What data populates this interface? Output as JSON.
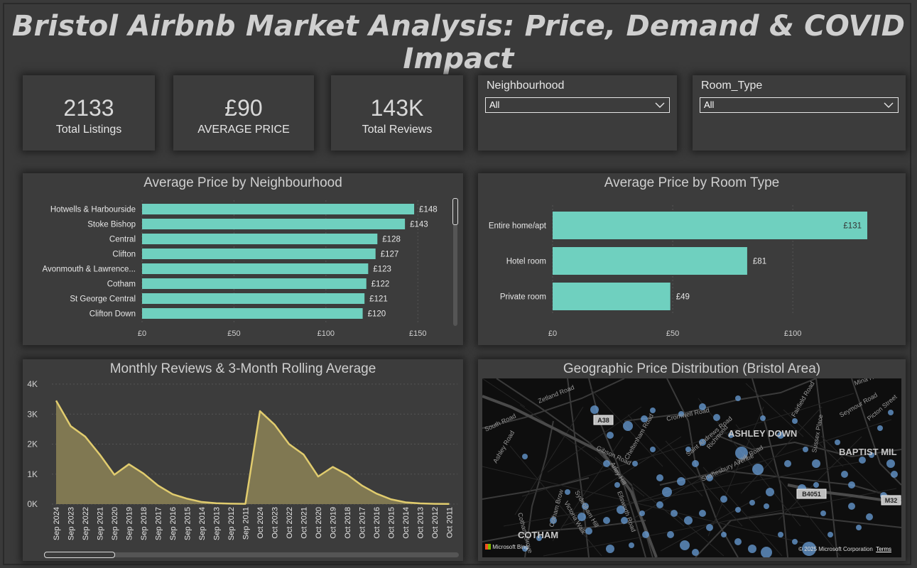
{
  "title": "Bristol Airbnb Market Analysis: Price, Demand & COVID Impact",
  "kpis": [
    {
      "value": "2133",
      "label": "Total Listings"
    },
    {
      "value": "£90",
      "label": "AVERAGE PRICE"
    },
    {
      "value": "143K",
      "label": "Total Reviews"
    }
  ],
  "slicers": {
    "neighbourhood": {
      "title": "Neighbourhood",
      "value": "All"
    },
    "room_type": {
      "title": "Room_Type",
      "value": "All"
    }
  },
  "colors": {
    "bar": "#6fd0bf",
    "area_fill": "#807852",
    "area_line": "#e1cc6e",
    "map_point": "#6a9fd8",
    "background": "#3a3a3a"
  },
  "charts": {
    "neighbourhood": {
      "title": "Average Price by Neighbourhood"
    },
    "room_type": {
      "title": "Average Price by Room Type"
    },
    "reviews": {
      "title": "Monthly Reviews & 3-Month Rolling Average"
    },
    "map": {
      "title": "Geographic Price Distribution (Bristol Area)"
    }
  },
  "chart_data": [
    {
      "type": "bar",
      "orientation": "horizontal",
      "title": "Average Price by Neighbourhood",
      "categories": [
        "Hotwells & Harbourside",
        "Stoke Bishop",
        "Central",
        "Clifton",
        "Avonmouth & Lawrence...",
        "Cotham",
        "St George Central",
        "Clifton Down"
      ],
      "values": [
        148,
        143,
        128,
        127,
        123,
        122,
        121,
        120
      ],
      "value_labels": [
        "£148",
        "£143",
        "£128",
        "£127",
        "£123",
        "£122",
        "£121",
        "£120"
      ],
      "xlim": [
        0,
        170
      ],
      "x_ticks": [
        0,
        50,
        100,
        150
      ],
      "x_tick_labels": [
        "£0",
        "£50",
        "£100",
        "£150"
      ],
      "grid": true
    },
    {
      "type": "bar",
      "orientation": "horizontal",
      "title": "Average Price by Room Type",
      "categories": [
        "Entire home/apt",
        "Hotel room",
        "Private room"
      ],
      "values": [
        131,
        81,
        49
      ],
      "value_labels": [
        "£131",
        "£81",
        "£49"
      ],
      "xlim": [
        0,
        131
      ],
      "x_ticks": [
        0,
        50,
        100
      ],
      "x_tick_labels": [
        "£0",
        "£50",
        "£100"
      ],
      "grid": true
    },
    {
      "type": "area",
      "title": "Monthly Reviews & 3-Month Rolling Average",
      "categories": [
        "Sep 2024",
        "Sep 2023",
        "Sep 2022",
        "Sep 2021",
        "Sep 2020",
        "Sep 2019",
        "Sep 2018",
        "Sep 2017",
        "Sep 2016",
        "Sep 2015",
        "Sep 2014",
        "Sep 2013",
        "Sep 2012",
        "Sep 2011",
        "Oct 2024",
        "Oct 2023",
        "Oct 2022",
        "Oct 2021",
        "Oct 2020",
        "Oct 2019",
        "Oct 2018",
        "Oct 2017",
        "Oct 2016",
        "Oct 2015",
        "Oct 2014",
        "Oct 2013",
        "Oct 2012",
        "Oct 2011"
      ],
      "values": [
        3450,
        2600,
        2250,
        1650,
        980,
        1330,
        1020,
        620,
        330,
        180,
        70,
        30,
        15,
        10,
        3100,
        2650,
        2000,
        1650,
        920,
        1240,
        980,
        620,
        350,
        160,
        60,
        25,
        10,
        5
      ],
      "ylim": [
        0,
        4000
      ],
      "y_ticks": [
        0,
        1000,
        2000,
        3000,
        4000
      ],
      "y_tick_labels": [
        "0K",
        "1K",
        "2K",
        "3K",
        "4K"
      ],
      "grid": true
    }
  ],
  "map": {
    "labels": [
      {
        "text": "ASHLEY DOWN",
        "kind": "district"
      },
      {
        "text": "BAPTIST MIL",
        "kind": "district"
      },
      {
        "text": "COTHAM",
        "kind": "district"
      },
      {
        "text": "Zetland Road",
        "kind": "street"
      },
      {
        "text": "South Road",
        "kind": "street"
      },
      {
        "text": "Cromwell Road",
        "kind": "street"
      },
      {
        "text": "Cheltenham Road",
        "kind": "street"
      },
      {
        "text": "Saint Andrews Road",
        "kind": "street"
      },
      {
        "text": "Richmond",
        "kind": "street"
      },
      {
        "text": "York Road",
        "kind": "street"
      },
      {
        "text": "Shaftesbury Avenue",
        "kind": "street"
      },
      {
        "text": "Gibson Road",
        "kind": "street"
      },
      {
        "text": "Arley Hill",
        "kind": "street"
      },
      {
        "text": "Cotham Brow",
        "kind": "street"
      },
      {
        "text": "Victoria Walk",
        "kind": "street"
      },
      {
        "text": "Sydenham Hill",
        "kind": "street"
      },
      {
        "text": "Ellsworth Road",
        "kind": "street"
      },
      {
        "text": "Cotham Grove",
        "kind": "street"
      },
      {
        "text": "Fairfield Road",
        "kind": "street"
      },
      {
        "text": "Mina Road",
        "kind": "street"
      },
      {
        "text": "Sussex Place",
        "kind": "street"
      },
      {
        "text": "Seymour Road",
        "kind": "street"
      },
      {
        "text": "Picton Street",
        "kind": "street"
      },
      {
        "text": "Ashley Road",
        "kind": "street"
      }
    ],
    "badges": [
      "A38",
      "B4051",
      "M32"
    ],
    "attribution": "Microsoft Bing",
    "copyright": "© 2025 Microsoft Corporation",
    "terms": "Terms"
  }
}
